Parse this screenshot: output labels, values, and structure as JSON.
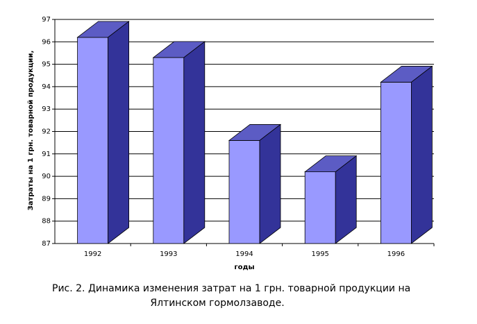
{
  "chart_data": {
    "type": "bar3d",
    "y_label": "Затраты на 1 грн. товарной продукции,",
    "x_label": "годы",
    "categories": [
      "1992",
      "1993",
      "1994",
      "1995",
      "1996"
    ],
    "values": [
      96.2,
      95.3,
      91.6,
      90.2,
      94.2
    ],
    "color": "#9999ff",
    "ylim": [
      87,
      97
    ],
    "yticks": [
      87,
      88,
      89,
      90,
      91,
      92,
      93,
      94,
      95,
      96,
      97
    ],
    "grid": true
  },
  "caption": {
    "line1": "Рис. 2. Динамика изменения затрат на 1 грн. товарной продукции на",
    "line2": "Ялтинском гормолзаводе."
  }
}
